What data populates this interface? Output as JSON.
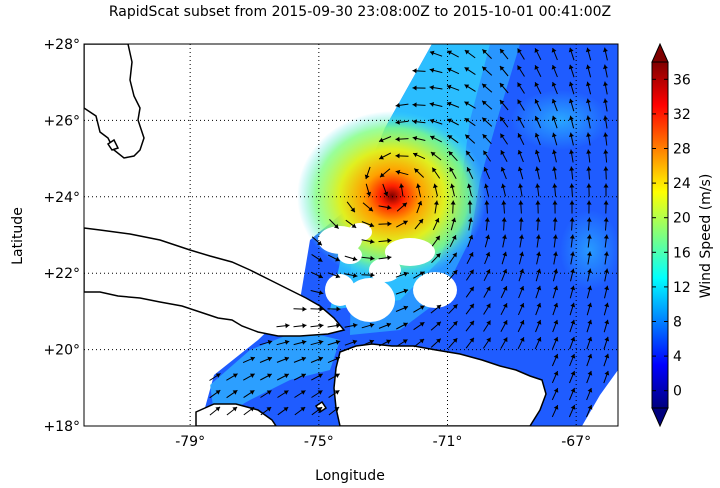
{
  "title": "RapidScat subset from 2015-09-30 23:08:00Z to 2015-10-01 00:41:00Z",
  "map": {
    "xlabel": "Longitude",
    "ylabel": "Latitude",
    "lon_ticks": [
      {
        "value": -79,
        "label": "-79°"
      },
      {
        "value": -75,
        "label": "-75°"
      },
      {
        "value": -71,
        "label": "-71°"
      },
      {
        "value": -67,
        "label": "-67°"
      }
    ],
    "lat_ticks": [
      {
        "value": 18,
        "label": "+18°"
      },
      {
        "value": 20,
        "label": "+20°"
      },
      {
        "value": 22,
        "label": "+22°"
      },
      {
        "value": 24,
        "label": "+24°"
      },
      {
        "value": 26,
        "label": "+26°"
      },
      {
        "value": 28,
        "label": "+28°"
      }
    ],
    "storm_center": {
      "lon": -72.7,
      "lat": 24.2
    },
    "grid": "dotted"
  },
  "colorbar": {
    "label": "Wind Speed (m/s)",
    "range": [
      -2,
      38
    ],
    "ticks": [
      {
        "value": 0,
        "label": "0"
      },
      {
        "value": 4,
        "label": "4"
      },
      {
        "value": 8,
        "label": "8"
      },
      {
        "value": 12,
        "label": "12"
      },
      {
        "value": 16,
        "label": "16"
      },
      {
        "value": 20,
        "label": "20"
      },
      {
        "value": 24,
        "label": "24"
      },
      {
        "value": 28,
        "label": "28"
      },
      {
        "value": 32,
        "label": "32"
      },
      {
        "value": 36,
        "label": "36"
      }
    ],
    "colormap": [
      "#00007f",
      "#0000ff",
      "#007fff",
      "#00ffff",
      "#7fff7f",
      "#ffff00",
      "#ff7f00",
      "#ff0000",
      "#7f0000"
    ]
  }
}
